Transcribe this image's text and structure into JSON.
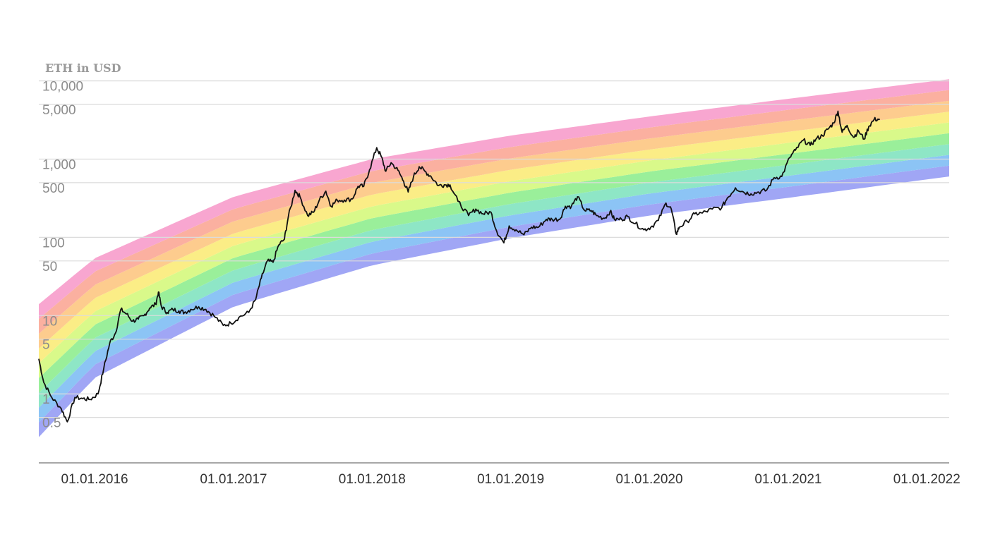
{
  "chart_data": {
    "type": "line",
    "ylabel": "ETH in USD",
    "yscale": "log",
    "ylim": [
      0.25,
      11000
    ],
    "xlim": [
      "2015-08-07",
      "2022-03-01"
    ],
    "grid": true,
    "y_ticks": [
      {
        "value": 10000,
        "label": "10,000"
      },
      {
        "value": 5000,
        "label": "5,000"
      },
      {
        "value": 1000,
        "label": "1,000"
      },
      {
        "value": 500,
        "label": "500"
      },
      {
        "value": 100,
        "label": "100"
      },
      {
        "value": 50,
        "label": "50"
      },
      {
        "value": 10,
        "label": "10"
      },
      {
        "value": 5,
        "label": "5"
      },
      {
        "value": 1,
        "label": "1"
      },
      {
        "value": 0.5,
        "label": "0.5"
      }
    ],
    "x_ticks": [
      {
        "value": "2016-01-01",
        "label": "01.01.2016"
      },
      {
        "value": "2017-01-01",
        "label": "01.01.2017"
      },
      {
        "value": "2018-01-01",
        "label": "01.01.2018"
      },
      {
        "value": "2019-01-01",
        "label": "01.01.2019"
      },
      {
        "value": "2020-01-01",
        "label": "01.01.2020"
      },
      {
        "value": "2021-01-01",
        "label": "01.01.2021"
      },
      {
        "value": "2022-01-01",
        "label": "01.01.2022"
      }
    ],
    "rainbow_colors": [
      "#a0a6f5",
      "#8cc4f5",
      "#8ee6c6",
      "#9aef9a",
      "#d9f98a",
      "#fbed86",
      "#fdcc8e",
      "#fbb0a0",
      "#f8a6d0"
    ],
    "rainbow_bounds": {
      "dates": [
        "2015-08-07",
        "2016-01-01",
        "2017-01-01",
        "2018-01-01",
        "2019-01-01",
        "2020-01-01",
        "2021-01-01",
        "2022-03-01"
      ],
      "bottom": [
        0.28,
        1.6,
        13,
        44,
        98,
        190,
        320,
        600
      ],
      "top": [
        14,
        54,
        330,
        1000,
        2000,
        3500,
        5900,
        10500
      ]
    },
    "series": [
      {
        "color": "#111111",
        "points": [
          [
            "2015-08-07",
            2.8
          ],
          [
            "2015-08-20",
            1.4
          ],
          [
            "2015-09-10",
            0.9
          ],
          [
            "2015-10-05",
            0.65
          ],
          [
            "2015-10-21",
            0.44
          ],
          [
            "2015-11-10",
            0.9
          ],
          [
            "2015-12-01",
            0.87
          ],
          [
            "2015-12-20",
            0.85
          ],
          [
            "2016-01-10",
            1.0
          ],
          [
            "2016-01-25",
            2.1
          ],
          [
            "2016-02-10",
            4.5
          ],
          [
            "2016-02-25",
            6.0
          ],
          [
            "2016-03-10",
            12.0
          ],
          [
            "2016-03-25",
            10.5
          ],
          [
            "2016-04-10",
            8.5
          ],
          [
            "2016-04-25",
            9.0
          ],
          [
            "2016-05-10",
            10.0
          ],
          [
            "2016-05-25",
            12.5
          ],
          [
            "2016-06-10",
            14.0
          ],
          [
            "2016-06-17",
            20.0
          ],
          [
            "2016-06-25",
            13.0
          ],
          [
            "2016-07-10",
            11.0
          ],
          [
            "2016-07-25",
            12.0
          ],
          [
            "2016-08-10",
            11.5
          ],
          [
            "2016-08-25",
            11.0
          ],
          [
            "2016-09-10",
            12.0
          ],
          [
            "2016-10-01",
            13.0
          ],
          [
            "2016-10-20",
            12.0
          ],
          [
            "2016-11-10",
            10.0
          ],
          [
            "2016-12-05",
            7.5
          ],
          [
            "2016-12-25",
            8.0
          ],
          [
            "2017-01-15",
            9.5
          ],
          [
            "2017-02-10",
            11.0
          ],
          [
            "2017-02-28",
            16.0
          ],
          [
            "2017-03-15",
            30.0
          ],
          [
            "2017-03-31",
            50.0
          ],
          [
            "2017-04-15",
            48.0
          ],
          [
            "2017-04-30",
            80.0
          ],
          [
            "2017-05-15",
            95.0
          ],
          [
            "2017-05-25",
            180.0
          ],
          [
            "2017-06-12",
            400.0
          ],
          [
            "2017-06-25",
            330.0
          ],
          [
            "2017-07-15",
            190.0
          ],
          [
            "2017-07-31",
            210.0
          ],
          [
            "2017-08-15",
            300.0
          ],
          [
            "2017-09-01",
            390.0
          ],
          [
            "2017-09-15",
            250.0
          ],
          [
            "2017-10-01",
            300.0
          ],
          [
            "2017-10-20",
            300.0
          ],
          [
            "2017-11-10",
            310.0
          ],
          [
            "2017-11-25",
            450.0
          ],
          [
            "2017-12-10",
            450.0
          ],
          [
            "2017-12-25",
            730.0
          ],
          [
            "2018-01-13",
            1400.0
          ],
          [
            "2018-01-25",
            1080.0
          ],
          [
            "2018-02-06",
            700.0
          ],
          [
            "2018-02-20",
            900.0
          ],
          [
            "2018-03-10",
            720.0
          ],
          [
            "2018-03-25",
            520.0
          ],
          [
            "2018-04-06",
            380.0
          ],
          [
            "2018-04-20",
            600.0
          ],
          [
            "2018-05-05",
            800.0
          ],
          [
            "2018-05-20",
            700.0
          ],
          [
            "2018-06-05",
            600.0
          ],
          [
            "2018-06-25",
            460.0
          ],
          [
            "2018-07-10",
            470.0
          ],
          [
            "2018-07-25",
            470.0
          ],
          [
            "2018-08-15",
            290.0
          ],
          [
            "2018-09-12",
            190.0
          ],
          [
            "2018-10-01",
            230.0
          ],
          [
            "2018-10-20",
            200.0
          ],
          [
            "2018-11-10",
            210.0
          ],
          [
            "2018-11-25",
            120.0
          ],
          [
            "2018-12-14",
            85.0
          ],
          [
            "2018-12-28",
            140.0
          ],
          [
            "2019-01-15",
            125.0
          ],
          [
            "2019-02-05",
            108.0
          ],
          [
            "2019-02-25",
            135.0
          ],
          [
            "2019-03-15",
            135.0
          ],
          [
            "2019-04-05",
            170.0
          ],
          [
            "2019-04-20",
            170.0
          ],
          [
            "2019-05-10",
            170.0
          ],
          [
            "2019-05-25",
            250.0
          ],
          [
            "2019-06-10",
            250.0
          ],
          [
            "2019-06-26",
            330.0
          ],
          [
            "2019-07-15",
            220.0
          ],
          [
            "2019-08-01",
            220.0
          ],
          [
            "2019-08-15",
            190.0
          ],
          [
            "2019-09-05",
            175.0
          ],
          [
            "2019-09-20",
            215.0
          ],
          [
            "2019-10-01",
            170.0
          ],
          [
            "2019-10-20",
            170.0
          ],
          [
            "2019-11-05",
            185.0
          ],
          [
            "2019-11-25",
            150.0
          ],
          [
            "2019-12-18",
            125.0
          ],
          [
            "2020-01-05",
            135.0
          ],
          [
            "2020-01-25",
            165.0
          ],
          [
            "2020-02-14",
            275.0
          ],
          [
            "2020-02-28",
            230.0
          ],
          [
            "2020-03-12",
            110.0
          ],
          [
            "2020-03-20",
            135.0
          ],
          [
            "2020-04-10",
            160.0
          ],
          [
            "2020-04-30",
            200.0
          ],
          [
            "2020-05-20",
            205.0
          ],
          [
            "2020-06-15",
            230.0
          ],
          [
            "2020-07-10",
            240.0
          ],
          [
            "2020-07-25",
            320.0
          ],
          [
            "2020-08-15",
            430.0
          ],
          [
            "2020-09-05",
            380.0
          ],
          [
            "2020-09-25",
            360.0
          ],
          [
            "2020-10-15",
            380.0
          ],
          [
            "2020-11-05",
            400.0
          ],
          [
            "2020-11-25",
            580.0
          ],
          [
            "2020-12-15",
            600.0
          ],
          [
            "2021-01-05",
            1050.0
          ],
          [
            "2021-01-20",
            1300.0
          ],
          [
            "2021-02-10",
            1750.0
          ],
          [
            "2021-02-28",
            1500.0
          ],
          [
            "2021-03-15",
            1800.0
          ],
          [
            "2021-04-01",
            2000.0
          ],
          [
            "2021-04-15",
            2400.0
          ],
          [
            "2021-05-01",
            2900.0
          ],
          [
            "2021-05-12",
            4100.0
          ],
          [
            "2021-05-23",
            2200.0
          ],
          [
            "2021-06-05",
            2700.0
          ],
          [
            "2021-06-22",
            1900.0
          ],
          [
            "2021-07-05",
            2300.0
          ],
          [
            "2021-07-20",
            1800.0
          ],
          [
            "2021-08-01",
            2600.0
          ],
          [
            "2021-08-15",
            3200.0
          ],
          [
            "2021-08-30",
            3250.0
          ]
        ]
      }
    ]
  }
}
